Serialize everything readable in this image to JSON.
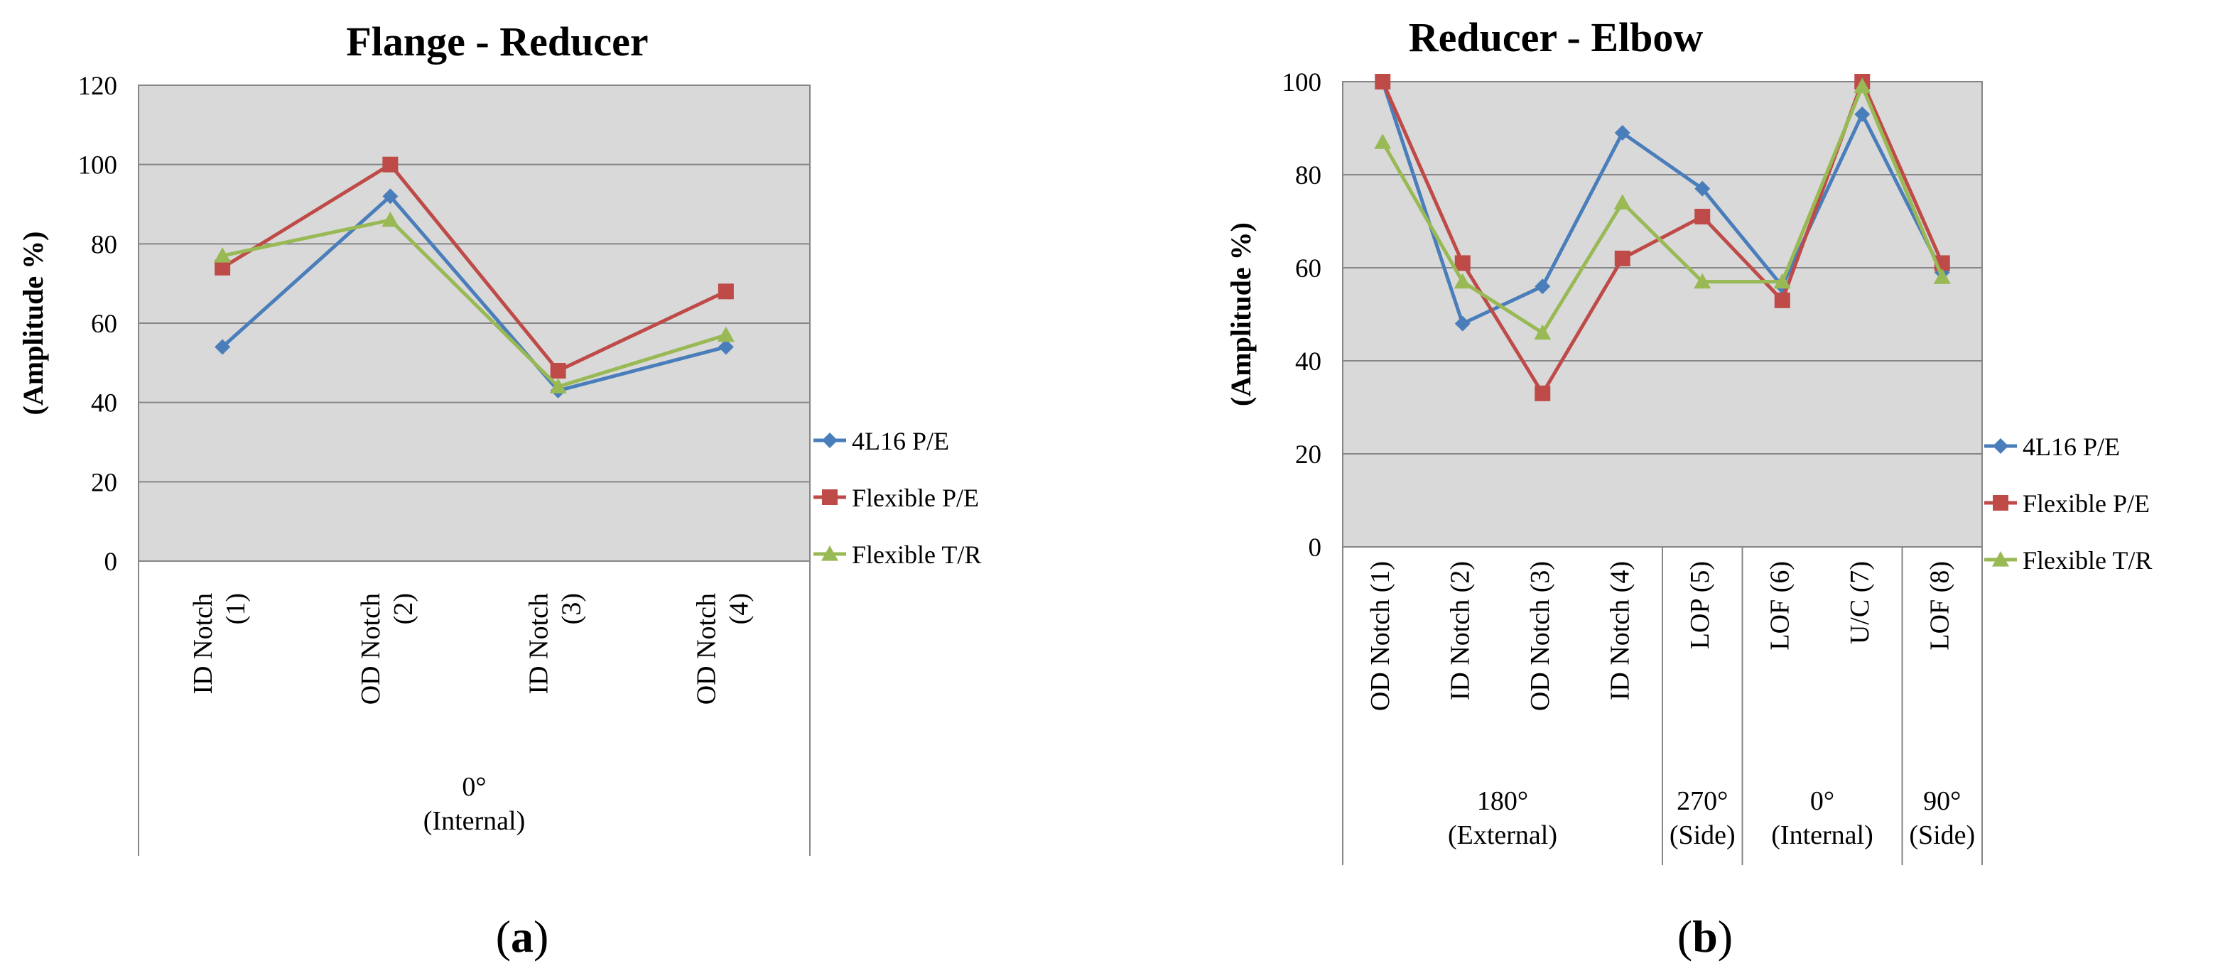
{
  "colors": {
    "plot_bg": "#d9d9d9",
    "grid": "#868686",
    "axis": "#868686",
    "series": [
      "#4a7ebb",
      "#be4b48",
      "#98b954"
    ]
  },
  "chart_data": [
    {
      "type": "line",
      "title": "Flange - Reducer",
      "ylabel": "(Amplitude %)",
      "xlabel": "",
      "ylim": [
        0,
        120
      ],
      "yticks": [
        0,
        20,
        40,
        60,
        80,
        100,
        120
      ],
      "categories": [
        [
          "ID Notch",
          "(1)"
        ],
        [
          "OD Notch",
          "(2)"
        ],
        [
          "ID Notch",
          "(3)"
        ],
        [
          "OD Notch",
          "(4)"
        ]
      ],
      "groups": [
        {
          "lines": [
            "0°",
            "(Internal)"
          ],
          "span": 4
        }
      ],
      "series": [
        {
          "name": "4L16  P/E",
          "marker": "diamond",
          "values": [
            54,
            92,
            43,
            54
          ]
        },
        {
          "name": "Flexible P/E",
          "marker": "square",
          "values": [
            74,
            100,
            48,
            68
          ]
        },
        {
          "name": "Flexible T/R",
          "marker": "triangle",
          "values": [
            77,
            86,
            44,
            57
          ]
        }
      ],
      "legend": "right",
      "grid": true,
      "panel_label": {
        "open": "(",
        "letter": "a",
        "close": ")"
      }
    },
    {
      "type": "line",
      "title": "Reducer - Elbow",
      "ylabel": "(Amplitude %)",
      "xlabel": "",
      "ylim": [
        0,
        100
      ],
      "yticks": [
        0,
        20,
        40,
        60,
        80,
        100
      ],
      "categories": [
        [
          "OD Notch (1)"
        ],
        [
          "ID Notch (2)"
        ],
        [
          "OD Notch (3)"
        ],
        [
          "ID Notch (4)"
        ],
        [
          "LOP (5)"
        ],
        [
          "LOF (6)"
        ],
        [
          "U/C (7)"
        ],
        [
          "LOF (8)"
        ]
      ],
      "groups": [
        {
          "lines": [
            "180°",
            "(External)"
          ],
          "span": 4
        },
        {
          "lines": [
            "270°",
            "(Side)"
          ],
          "span": 1
        },
        {
          "lines": [
            "0°",
            "(Internal)"
          ],
          "span": 2
        },
        {
          "lines": [
            "90°",
            "(Side)"
          ],
          "span": 1
        }
      ],
      "series": [
        {
          "name": "4L16  P/E",
          "marker": "diamond",
          "values": [
            100,
            48,
            56,
            89,
            77,
            56,
            93,
            59
          ]
        },
        {
          "name": "Flexible P/E",
          "marker": "square",
          "values": [
            100,
            61,
            33,
            62,
            71,
            53,
            100,
            61
          ]
        },
        {
          "name": "Flexible T/R",
          "marker": "triangle",
          "values": [
            87,
            57,
            46,
            74,
            57,
            57,
            99,
            58
          ]
        }
      ],
      "legend": "right",
      "grid": true,
      "panel_label": {
        "open": "(",
        "letter": "b",
        "close": ")"
      }
    }
  ]
}
